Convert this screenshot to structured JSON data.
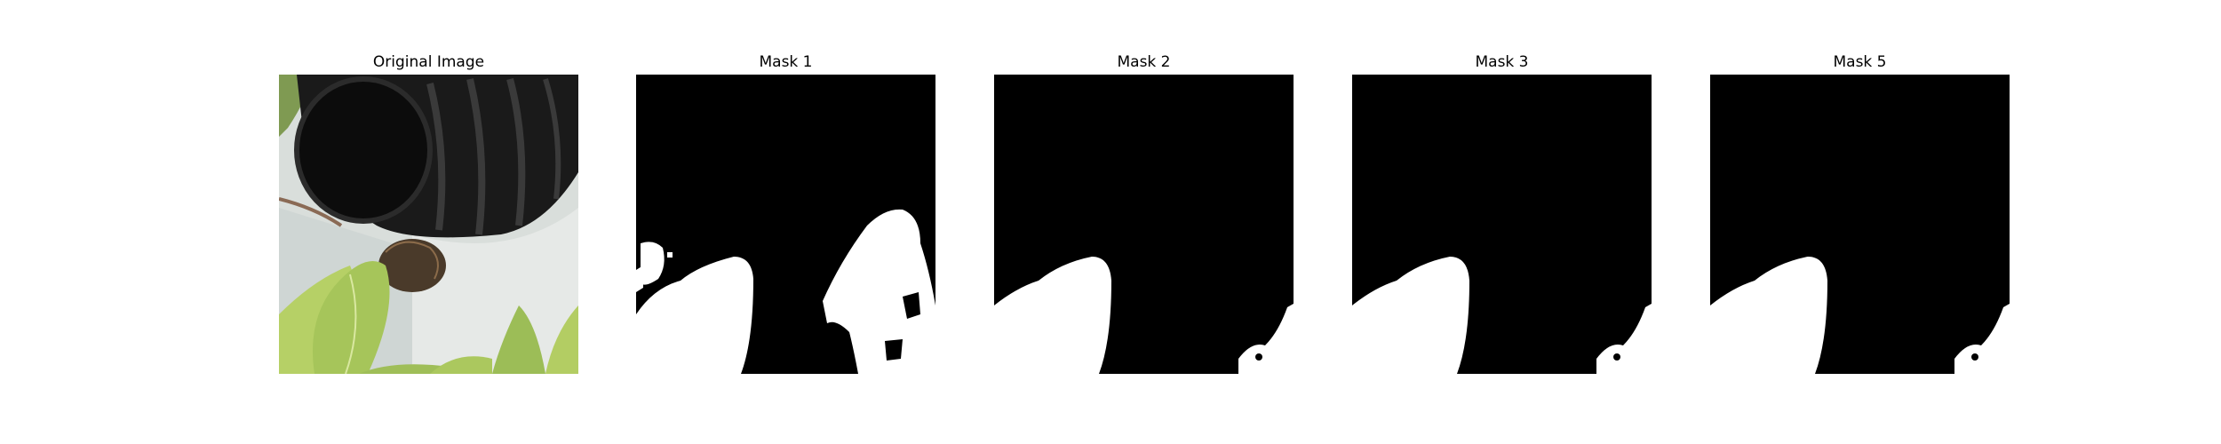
{
  "figure": {
    "panels": [
      {
        "id": "original",
        "title": "Original Image"
      },
      {
        "id": "mask1",
        "title": "Mask 1"
      },
      {
        "id": "mask2",
        "title": "Mask 2"
      },
      {
        "id": "mask3",
        "title": "Mask 3"
      },
      {
        "id": "mask5",
        "title": "Mask 5"
      }
    ]
  },
  "colors": {
    "mask_background": "#000000",
    "mask_foreground": "#ffffff",
    "leaf": "#a9c75a",
    "hose": "#141414",
    "surface": "#d8ddd9"
  }
}
